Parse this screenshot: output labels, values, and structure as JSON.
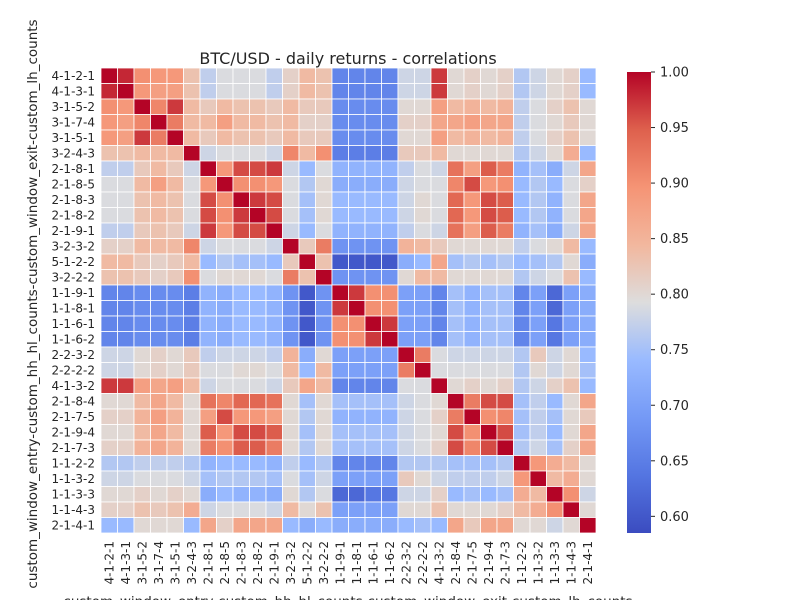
{
  "chart_data": {
    "type": "heatmap",
    "title": "BTC/USD - daily returns - correlations",
    "xlabel": "custom_window_entry-custom_hh_hl_counts-custom_window_exit-custom_lh_counts",
    "ylabel": "custom_window_entry-custom_hh_hl_counts-custom_window_exit-custom_lh_counts",
    "labels": [
      "4-1-2-1",
      "4-1-3-1",
      "3-1-5-2",
      "3-1-7-4",
      "3-1-5-1",
      "3-2-4-3",
      "2-1-8-1",
      "2-1-8-5",
      "2-1-8-3",
      "2-1-8-2",
      "2-1-9-1",
      "3-2-3-2",
      "5-1-2-2",
      "3-2-2-2",
      "1-1-9-1",
      "1-1-8-1",
      "1-1-6-1",
      "1-1-6-2",
      "2-2-3-2",
      "2-2-2-2",
      "4-1-3-2",
      "2-1-8-4",
      "2-1-7-5",
      "2-1-9-4",
      "2-1-7-3",
      "1-1-2-2",
      "1-1-3-2",
      "1-1-3-3",
      "1-1-4-3",
      "2-1-4-1"
    ],
    "matrix": [
      [
        1.0,
        0.98,
        0.9,
        0.89,
        0.89,
        0.83,
        0.77,
        0.79,
        0.79,
        0.79,
        0.77,
        0.81,
        0.84,
        0.83,
        0.66,
        0.66,
        0.66,
        0.66,
        0.78,
        0.78,
        0.97,
        0.8,
        0.81,
        0.8,
        0.81,
        0.76,
        0.78,
        0.8,
        0.81,
        0.74
      ],
      [
        0.98,
        1.0,
        0.89,
        0.88,
        0.88,
        0.83,
        0.77,
        0.79,
        0.79,
        0.79,
        0.77,
        0.81,
        0.84,
        0.83,
        0.66,
        0.66,
        0.66,
        0.66,
        0.78,
        0.78,
        0.97,
        0.8,
        0.81,
        0.8,
        0.81,
        0.76,
        0.78,
        0.8,
        0.81,
        0.74
      ],
      [
        0.9,
        0.89,
        1.0,
        0.91,
        0.97,
        0.84,
        0.82,
        0.84,
        0.83,
        0.83,
        0.82,
        0.84,
        0.82,
        0.82,
        0.67,
        0.67,
        0.67,
        0.67,
        0.8,
        0.8,
        0.88,
        0.84,
        0.85,
        0.84,
        0.85,
        0.77,
        0.79,
        0.81,
        0.83,
        0.8
      ],
      [
        0.89,
        0.88,
        0.91,
        1.0,
        0.92,
        0.84,
        0.84,
        0.88,
        0.84,
        0.84,
        0.83,
        0.84,
        0.81,
        0.81,
        0.67,
        0.67,
        0.67,
        0.67,
        0.81,
        0.81,
        0.87,
        0.87,
        0.88,
        0.87,
        0.87,
        0.77,
        0.79,
        0.8,
        0.82,
        0.8
      ],
      [
        0.89,
        0.88,
        0.97,
        0.92,
        1.0,
        0.84,
        0.82,
        0.84,
        0.83,
        0.83,
        0.82,
        0.84,
        0.82,
        0.82,
        0.67,
        0.67,
        0.67,
        0.67,
        0.8,
        0.8,
        0.88,
        0.84,
        0.85,
        0.84,
        0.85,
        0.77,
        0.79,
        0.81,
        0.83,
        0.8
      ],
      [
        0.83,
        0.83,
        0.84,
        0.84,
        0.84,
        1.0,
        0.78,
        0.79,
        0.79,
        0.79,
        0.78,
        0.91,
        0.84,
        0.9,
        0.65,
        0.65,
        0.65,
        0.65,
        0.82,
        0.82,
        0.84,
        0.8,
        0.8,
        0.8,
        0.8,
        0.76,
        0.78,
        0.8,
        0.86,
        0.74
      ],
      [
        0.77,
        0.77,
        0.82,
        0.84,
        0.82,
        0.78,
        1.0,
        0.89,
        0.96,
        0.96,
        0.97,
        0.78,
        0.74,
        0.79,
        0.73,
        0.73,
        0.73,
        0.73,
        0.77,
        0.79,
        0.78,
        0.93,
        0.88,
        0.95,
        0.92,
        0.73,
        0.75,
        0.72,
        0.78,
        0.87
      ],
      [
        0.79,
        0.79,
        0.84,
        0.88,
        0.84,
        0.79,
        0.89,
        1.0,
        0.9,
        0.9,
        0.89,
        0.79,
        0.76,
        0.8,
        0.72,
        0.72,
        0.72,
        0.72,
        0.78,
        0.79,
        0.79,
        0.91,
        0.96,
        0.89,
        0.9,
        0.74,
        0.76,
        0.74,
        0.79,
        0.81
      ],
      [
        0.79,
        0.79,
        0.83,
        0.84,
        0.83,
        0.79,
        0.96,
        0.9,
        1.0,
        0.97,
        0.96,
        0.79,
        0.75,
        0.8,
        0.74,
        0.74,
        0.74,
        0.74,
        0.78,
        0.8,
        0.79,
        0.94,
        0.89,
        0.96,
        0.95,
        0.74,
        0.76,
        0.73,
        0.79,
        0.87
      ],
      [
        0.79,
        0.79,
        0.83,
        0.84,
        0.83,
        0.79,
        0.96,
        0.9,
        0.97,
        1.0,
        0.96,
        0.79,
        0.75,
        0.8,
        0.74,
        0.74,
        0.74,
        0.74,
        0.78,
        0.8,
        0.79,
        0.94,
        0.89,
        0.96,
        0.95,
        0.74,
        0.76,
        0.73,
        0.79,
        0.87
      ],
      [
        0.77,
        0.77,
        0.82,
        0.83,
        0.82,
        0.78,
        0.97,
        0.89,
        0.96,
        0.96,
        1.0,
        0.78,
        0.74,
        0.79,
        0.73,
        0.73,
        0.73,
        0.73,
        0.77,
        0.79,
        0.78,
        0.93,
        0.88,
        0.95,
        0.92,
        0.73,
        0.75,
        0.72,
        0.78,
        0.87
      ],
      [
        0.81,
        0.81,
        0.84,
        0.84,
        0.84,
        0.91,
        0.78,
        0.79,
        0.79,
        0.79,
        0.78,
        1.0,
        0.82,
        0.92,
        0.68,
        0.68,
        0.68,
        0.68,
        0.85,
        0.84,
        0.82,
        0.8,
        0.8,
        0.8,
        0.8,
        0.77,
        0.79,
        0.8,
        0.84,
        0.74
      ],
      [
        0.84,
        0.84,
        0.82,
        0.81,
        0.82,
        0.84,
        0.74,
        0.76,
        0.75,
        0.75,
        0.74,
        0.82,
        1.0,
        0.83,
        0.6,
        0.6,
        0.6,
        0.6,
        0.72,
        0.74,
        0.87,
        0.75,
        0.76,
        0.75,
        0.76,
        0.74,
        0.75,
        0.76,
        0.8,
        0.72
      ],
      [
        0.83,
        0.83,
        0.82,
        0.81,
        0.82,
        0.9,
        0.79,
        0.8,
        0.8,
        0.8,
        0.79,
        0.92,
        0.83,
        1.0,
        0.68,
        0.68,
        0.68,
        0.68,
        0.8,
        0.84,
        0.84,
        0.8,
        0.8,
        0.8,
        0.8,
        0.76,
        0.78,
        0.79,
        0.83,
        0.74
      ],
      [
        0.66,
        0.66,
        0.67,
        0.67,
        0.67,
        0.65,
        0.73,
        0.72,
        0.74,
        0.74,
        0.73,
        0.68,
        0.6,
        0.68,
        1.0,
        0.97,
        0.9,
        0.9,
        0.7,
        0.7,
        0.66,
        0.75,
        0.73,
        0.75,
        0.75,
        0.66,
        0.7,
        0.62,
        0.7,
        0.72
      ],
      [
        0.66,
        0.66,
        0.67,
        0.67,
        0.67,
        0.65,
        0.73,
        0.72,
        0.74,
        0.74,
        0.73,
        0.68,
        0.6,
        0.68,
        0.97,
        1.0,
        0.9,
        0.9,
        0.7,
        0.7,
        0.66,
        0.75,
        0.73,
        0.75,
        0.75,
        0.66,
        0.7,
        0.62,
        0.7,
        0.72
      ],
      [
        0.66,
        0.66,
        0.67,
        0.67,
        0.67,
        0.65,
        0.73,
        0.72,
        0.74,
        0.74,
        0.73,
        0.68,
        0.6,
        0.68,
        0.9,
        0.9,
        1.0,
        0.97,
        0.7,
        0.7,
        0.66,
        0.75,
        0.73,
        0.75,
        0.75,
        0.66,
        0.7,
        0.64,
        0.7,
        0.72
      ],
      [
        0.66,
        0.66,
        0.67,
        0.67,
        0.67,
        0.65,
        0.73,
        0.72,
        0.74,
        0.74,
        0.73,
        0.68,
        0.6,
        0.68,
        0.9,
        0.9,
        0.97,
        1.0,
        0.7,
        0.7,
        0.66,
        0.75,
        0.73,
        0.75,
        0.75,
        0.66,
        0.7,
        0.64,
        0.7,
        0.72
      ],
      [
        0.78,
        0.78,
        0.8,
        0.81,
        0.8,
        0.82,
        0.77,
        0.78,
        0.78,
        0.78,
        0.77,
        0.85,
        0.72,
        0.8,
        0.7,
        0.7,
        0.7,
        0.7,
        1.0,
        0.92,
        0.79,
        0.78,
        0.78,
        0.78,
        0.78,
        0.76,
        0.82,
        0.78,
        0.8,
        0.74
      ],
      [
        0.78,
        0.78,
        0.8,
        0.81,
        0.8,
        0.82,
        0.79,
        0.79,
        0.8,
        0.8,
        0.79,
        0.84,
        0.74,
        0.84,
        0.7,
        0.7,
        0.7,
        0.7,
        0.92,
        1.0,
        0.79,
        0.79,
        0.79,
        0.79,
        0.79,
        0.76,
        0.8,
        0.78,
        0.8,
        0.75
      ],
      [
        0.97,
        0.97,
        0.88,
        0.87,
        0.88,
        0.84,
        0.78,
        0.79,
        0.79,
        0.79,
        0.78,
        0.82,
        0.87,
        0.84,
        0.66,
        0.66,
        0.66,
        0.66,
        0.79,
        0.79,
        1.0,
        0.8,
        0.81,
        0.8,
        0.81,
        0.76,
        0.78,
        0.81,
        0.83,
        0.74
      ],
      [
        0.8,
        0.8,
        0.84,
        0.87,
        0.84,
        0.8,
        0.93,
        0.91,
        0.94,
        0.94,
        0.93,
        0.8,
        0.75,
        0.8,
        0.75,
        0.75,
        0.75,
        0.75,
        0.78,
        0.79,
        0.8,
        1.0,
        0.92,
        0.96,
        0.96,
        0.75,
        0.77,
        0.74,
        0.8,
        0.87
      ],
      [
        0.81,
        0.81,
        0.85,
        0.88,
        0.85,
        0.8,
        0.88,
        0.96,
        0.89,
        0.89,
        0.88,
        0.8,
        0.76,
        0.8,
        0.73,
        0.73,
        0.73,
        0.73,
        0.78,
        0.79,
        0.81,
        0.92,
        1.0,
        0.9,
        0.91,
        0.75,
        0.77,
        0.75,
        0.8,
        0.82
      ],
      [
        0.8,
        0.8,
        0.84,
        0.87,
        0.84,
        0.8,
        0.95,
        0.89,
        0.96,
        0.96,
        0.95,
        0.8,
        0.75,
        0.8,
        0.75,
        0.75,
        0.75,
        0.75,
        0.78,
        0.79,
        0.8,
        0.96,
        0.9,
        1.0,
        0.96,
        0.75,
        0.77,
        0.74,
        0.8,
        0.87
      ],
      [
        0.81,
        0.81,
        0.85,
        0.87,
        0.85,
        0.8,
        0.92,
        0.9,
        0.95,
        0.95,
        0.92,
        0.8,
        0.76,
        0.8,
        0.75,
        0.75,
        0.75,
        0.75,
        0.78,
        0.79,
        0.81,
        0.96,
        0.91,
        0.96,
        1.0,
        0.76,
        0.78,
        0.75,
        0.81,
        0.87
      ],
      [
        0.76,
        0.76,
        0.77,
        0.77,
        0.77,
        0.76,
        0.73,
        0.74,
        0.74,
        0.74,
        0.73,
        0.77,
        0.74,
        0.76,
        0.66,
        0.66,
        0.66,
        0.66,
        0.76,
        0.76,
        0.76,
        0.75,
        0.75,
        0.75,
        0.76,
        1.0,
        0.89,
        0.86,
        0.84,
        0.8
      ],
      [
        0.78,
        0.78,
        0.79,
        0.79,
        0.79,
        0.78,
        0.75,
        0.76,
        0.76,
        0.76,
        0.75,
        0.79,
        0.75,
        0.78,
        0.7,
        0.7,
        0.7,
        0.7,
        0.82,
        0.8,
        0.78,
        0.77,
        0.77,
        0.77,
        0.78,
        0.89,
        1.0,
        0.84,
        0.86,
        0.8
      ],
      [
        0.8,
        0.8,
        0.81,
        0.8,
        0.81,
        0.8,
        0.72,
        0.74,
        0.73,
        0.73,
        0.72,
        0.8,
        0.76,
        0.79,
        0.62,
        0.62,
        0.64,
        0.64,
        0.78,
        0.78,
        0.81,
        0.74,
        0.75,
        0.74,
        0.75,
        0.86,
        0.84,
        1.0,
        0.9,
        0.78
      ],
      [
        0.81,
        0.81,
        0.83,
        0.82,
        0.83,
        0.86,
        0.78,
        0.79,
        0.79,
        0.79,
        0.78,
        0.84,
        0.8,
        0.83,
        0.7,
        0.7,
        0.7,
        0.7,
        0.8,
        0.8,
        0.83,
        0.8,
        0.8,
        0.8,
        0.81,
        0.84,
        0.86,
        0.9,
        1.0,
        0.8
      ],
      [
        0.74,
        0.74,
        0.8,
        0.8,
        0.8,
        0.74,
        0.87,
        0.81,
        0.87,
        0.87,
        0.87,
        0.74,
        0.72,
        0.74,
        0.72,
        0.72,
        0.72,
        0.72,
        0.74,
        0.75,
        0.74,
        0.87,
        0.82,
        0.87,
        0.87,
        0.8,
        0.8,
        0.78,
        0.8,
        1.0
      ]
    ],
    "vmin": 0.585,
    "vmax": 1.0,
    "colormap": "coolwarm",
    "colorbar_ticks": [
      "1.00",
      "0.95",
      "0.90",
      "0.85",
      "0.80",
      "0.75",
      "0.70",
      "0.65",
      "0.60"
    ],
    "cell_border_color": "#ffffff"
  }
}
